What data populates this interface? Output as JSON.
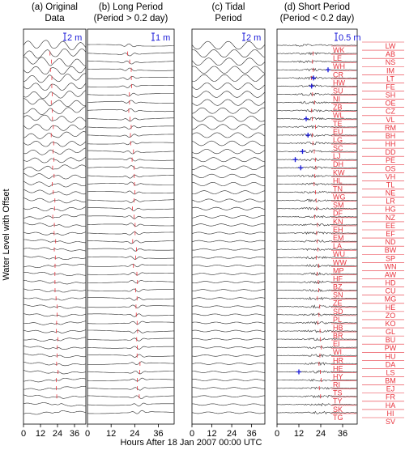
{
  "chart_data": {
    "type": "line",
    "ylabel": "Water Level with Offset",
    "xlabel": "Hours After 18 Jan 2007 00:00 UTC",
    "x_ticks": [
      0,
      12,
      24,
      36
    ],
    "xlim": [
      0,
      44
    ],
    "panels": [
      {
        "id": "a",
        "title_line1": "(a) Original",
        "title_line2": "Data",
        "scale_label": "2 m"
      },
      {
        "id": "b",
        "title_line1": "(b) Long Period",
        "title_line2": "(Period > 0.2 day)",
        "scale_label": "1 m"
      },
      {
        "id": "c",
        "title_line1": "(c) Tidal",
        "title_line2": "Period",
        "scale_label": "2 m"
      },
      {
        "id": "d",
        "title_line1": "(d) Short Period",
        "title_line2": "(Period < 0.2 day)",
        "scale_label": "0.5 m"
      }
    ],
    "stations_left": [
      "WK",
      "LE",
      "WH",
      "CR",
      "HW",
      "SU",
      "NI",
      "ZB",
      "WL",
      "TE",
      "EU",
      "LG",
      "SC",
      "LJ",
      "DH",
      "KW",
      "HL",
      "TN",
      "WG",
      "SM",
      "DF",
      "KN",
      "EH",
      "EM",
      "LA",
      "WU",
      "WW",
      "MP",
      "HF",
      "BZ",
      "SN",
      "ZE",
      "SD",
      "PL",
      "HB",
      "BR",
      "EI",
      "WI",
      "HR",
      "HE",
      "HY",
      "RI",
      "TS",
      "TY",
      "SK",
      "TG"
    ],
    "stations_right": [
      "LW",
      "AB",
      "NS",
      "IM",
      "LT",
      "FE",
      "SH",
      "OE",
      "CZ",
      "VL",
      "RM",
      "BH",
      "HH",
      "DD",
      "PE",
      "OS",
      "VH",
      "TL",
      "NE",
      "LR",
      "HG",
      "NZ",
      "EE",
      "EF",
      "ND",
      "BW",
      "SP",
      "WN",
      "AW",
      "HD",
      "CU",
      "MG",
      "HE",
      "ZO",
      "KO",
      "GL",
      "BU",
      "PW",
      "HU",
      "DA",
      "LS",
      "BM",
      "EJ",
      "FR",
      "HA",
      "HI",
      "SV"
    ],
    "colors": {
      "trace": "#2a2a2a",
      "arrival": "#e8323c",
      "label": "#e8323c",
      "scale": "#1a1ad8",
      "marker": "#1a1ad8",
      "frame": "#000000"
    }
  }
}
